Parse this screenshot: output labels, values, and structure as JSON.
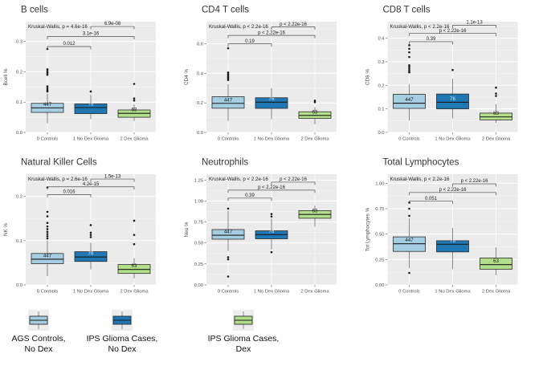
{
  "figure": {
    "background": "#ffffff"
  },
  "colors": {
    "panel_bg": "#ebebeb",
    "grid_major": "#ffffff",
    "box_border": "#2b2b2b",
    "whisker": "#8a8a8a",
    "median": "#1a1a1a",
    "outlier": "#1a1a1a",
    "bracket": "#4d4d4d",
    "title_text": "#333333",
    "axis_text": "#4d4d4d",
    "annotation_text": "#1a1a1a",
    "legend_key_bg": "#ededed",
    "groups": [
      "#a6cee3",
      "#1f78b4",
      "#b2df8a"
    ],
    "n_label_colors": [
      "#1a1a1a",
      "#dbe9f5",
      "#1a1a1a"
    ]
  },
  "x_categories": [
    "0 Controls",
    "1 No Dex Glioma",
    "2 Dex Glioma"
  ],
  "chart_data": [
    {
      "type": "boxplot",
      "title": "B cells",
      "ylabel": "Bcell %",
      "kruskal": "Kruskal-Wallis, p = 4.6e-16",
      "ylim": [
        0,
        0.365
      ],
      "yticks": [
        0,
        0.1,
        0.2,
        0.3
      ],
      "ytick_labels": [
        "0.0",
        "0.1",
        "0.2",
        "0.3"
      ],
      "categories": [
        "0 Controls",
        "1 No Dex Glioma",
        "2 Dex Glioma"
      ],
      "boxes": [
        {
          "n": 447,
          "whislo": 0.03,
          "q1": 0.066,
          "med": 0.081,
          "q3": 0.096,
          "whishi": 0.128,
          "outliers": [
            0.135,
            0.14,
            0.146,
            0.152,
            0.19,
            0.196,
            0.202,
            0.208,
            0.275
          ]
        },
        {
          "n": 76,
          "whislo": 0.044,
          "q1": 0.062,
          "med": 0.082,
          "q3": 0.094,
          "whishi": 0.124,
          "outliers": [
            0.135
          ]
        },
        {
          "n": 63,
          "whislo": 0.038,
          "q1": 0.05,
          "med": 0.063,
          "q3": 0.074,
          "whishi": 0.092,
          "outliers": [
            0.105,
            0.112,
            0.16
          ]
        }
      ],
      "comparisons": [
        {
          "groups": [
            0,
            1
          ],
          "label": "0.012",
          "y": 0.283
        },
        {
          "groups": [
            0,
            2
          ],
          "label": "3.1e-16",
          "y": 0.316
        },
        {
          "groups": [
            1,
            2
          ],
          "label": "6.9e-08",
          "y": 0.349
        }
      ]
    },
    {
      "type": "boxplot",
      "title": "CD4 T cells",
      "ylabel": "CD4 %",
      "kruskal": "Kruskal-Wallis, p < 2.2e-16",
      "ylim": [
        0,
        0.75
      ],
      "yticks": [
        0,
        0.2,
        0.4,
        0.6
      ],
      "ytick_labels": [
        "0.0",
        "0.2",
        "0.4",
        "0.6"
      ],
      "categories": [
        "0 Controls",
        "1 No Dex Glioma",
        "2 Dex Glioma"
      ],
      "boxes": [
        {
          "n": 447,
          "whislo": 0.078,
          "q1": 0.164,
          "med": 0.197,
          "q3": 0.242,
          "whishi": 0.327,
          "outliers": [
            0.355,
            0.365,
            0.375,
            0.385,
            0.395,
            0.405,
            0.57
          ]
        },
        {
          "n": 76,
          "whislo": 0.09,
          "q1": 0.163,
          "med": 0.205,
          "q3": 0.235,
          "whishi": 0.3,
          "outliers": []
        },
        {
          "n": 63,
          "whislo": 0.055,
          "q1": 0.095,
          "med": 0.115,
          "q3": 0.14,
          "whishi": 0.172,
          "outliers": [
            0.205,
            0.215
          ]
        }
      ],
      "comparisons": [
        {
          "groups": [
            0,
            1
          ],
          "label": "0.19",
          "y": 0.6
        },
        {
          "groups": [
            0,
            2
          ],
          "label": "p < 2.22e-16",
          "y": 0.657
        },
        {
          "groups": [
            1,
            2
          ],
          "label": "p < 2.22e-16",
          "y": 0.714
        }
      ]
    },
    {
      "type": "boxplot",
      "title": "CD8 T cells",
      "ylabel": "CD8 %",
      "kruskal": "Kruskal-Wallis, p < 2.2e-16",
      "ylim": [
        0,
        0.47
      ],
      "yticks": [
        0,
        0.1,
        0.2,
        0.3,
        0.4
      ],
      "ytick_labels": [
        "0.0",
        "0.1",
        "0.2",
        "0.3",
        "0.4"
      ],
      "categories": [
        "0 Controls",
        "1 No Dex Glioma",
        "2 Dex Glioma"
      ],
      "boxes": [
        {
          "n": 447,
          "whislo": 0.05,
          "q1": 0.102,
          "med": 0.124,
          "q3": 0.162,
          "whishi": 0.205,
          "outliers": [
            0.255,
            0.262,
            0.27,
            0.278,
            0.285,
            0.32,
            0.34,
            0.355,
            0.37
          ]
        },
        {
          "n": 76,
          "whislo": 0.06,
          "q1": 0.1,
          "med": 0.128,
          "q3": 0.163,
          "whishi": 0.228,
          "outliers": [
            0.265
          ]
        },
        {
          "n": 63,
          "whislo": 0.04,
          "q1": 0.053,
          "med": 0.066,
          "q3": 0.082,
          "whishi": 0.12,
          "outliers": [
            0.155,
            0.165,
            0.19
          ]
        }
      ],
      "comparisons": [
        {
          "groups": [
            0,
            1
          ],
          "label": "0.39",
          "y": 0.385
        },
        {
          "groups": [
            0,
            2
          ],
          "label": "p < 2.22e-16",
          "y": 0.42
        },
        {
          "groups": [
            1,
            2
          ],
          "label": "1.1e-13",
          "y": 0.455
        }
      ]
    },
    {
      "type": "boxplot",
      "title": "Natural Killer Cells",
      "ylabel": "NK %",
      "kruskal": "Kruskal-Wallis, p = 2.6e-16",
      "ylim": [
        0,
        0.25
      ],
      "yticks": [
        0,
        0.1,
        0.2
      ],
      "ytick_labels": [
        "0.0",
        "0.1",
        "0.2"
      ],
      "categories": [
        "0 Controls",
        "1 No Dex Glioma",
        "2 Dex Glioma"
      ],
      "boxes": [
        {
          "n": 447,
          "whislo": 0.02,
          "q1": 0.048,
          "med": 0.058,
          "q3": 0.071,
          "whishi": 0.1,
          "outliers": [
            0.105,
            0.11,
            0.115,
            0.12,
            0.126,
            0.132,
            0.14,
            0.155,
            0.165,
            0.22
          ]
        },
        {
          "n": 76,
          "whislo": 0.035,
          "q1": 0.053,
          "med": 0.063,
          "q3": 0.075,
          "whishi": 0.095,
          "outliers": [
            0.108,
            0.113,
            0.118,
            0.135
          ]
        },
        {
          "n": 63,
          "whislo": 0.015,
          "q1": 0.026,
          "med": 0.035,
          "q3": 0.046,
          "whishi": 0.06,
          "outliers": [
            0.092,
            0.113,
            0.145
          ]
        }
      ],
      "comparisons": [
        {
          "groups": [
            0,
            1
          ],
          "label": "0.016",
          "y": 0.204
        },
        {
          "groups": [
            0,
            2
          ],
          "label": "4.2e-15",
          "y": 0.2215
        },
        {
          "groups": [
            1,
            2
          ],
          "label": "1.5e-13",
          "y": 0.239
        }
      ]
    },
    {
      "type": "boxplot",
      "title": "Neutrophils",
      "ylabel": "Neu %",
      "kruskal": "Kruskal-Wallis, p < 2.2e-16",
      "ylim": [
        0,
        1.32
      ],
      "yticks": [
        0,
        0.25,
        0.5,
        0.75,
        1,
        1.25
      ],
      "ytick_labels": [
        "0.00",
        "0.25",
        "0.50",
        "0.75",
        "1.00",
        "1.25"
      ],
      "categories": [
        "0 Controls",
        "1 No Dex Glioma",
        "2 Dex Glioma"
      ],
      "boxes": [
        {
          "n": 447,
          "whislo": 0.405,
          "q1": 0.545,
          "med": 0.592,
          "q3": 0.66,
          "whishi": 0.885,
          "outliers": [
            0.91,
            0.33,
            0.305,
            0.1
          ]
        },
        {
          "n": 76,
          "whislo": 0.425,
          "q1": 0.55,
          "med": 0.6,
          "q3": 0.645,
          "whishi": 0.79,
          "outliers": [
            0.815,
            0.845,
            0.39
          ]
        },
        {
          "n": 63,
          "whislo": 0.695,
          "q1": 0.795,
          "med": 0.84,
          "q3": 0.885,
          "whishi": 0.945,
          "outliers": []
        }
      ],
      "comparisons": [
        {
          "groups": [
            0,
            1
          ],
          "label": "0.39",
          "y": 1.035
        },
        {
          "groups": [
            0,
            2
          ],
          "label": "p < 2.22e-16",
          "y": 1.13
        },
        {
          "groups": [
            1,
            2
          ],
          "label": "p < 2.22e-16",
          "y": 1.225
        }
      ]
    },
    {
      "type": "boxplot",
      "title": "Total Lymphocytes",
      "ylabel": "Tot Lymphocytes %",
      "kruskal": "Kruskal-Wallis, p < 2.2e-16",
      "ylim": [
        0,
        1.09
      ],
      "yticks": [
        0,
        0.25,
        0.5,
        0.75,
        1
      ],
      "ytick_labels": [
        "0.00",
        "0.25",
        "0.50",
        "0.75",
        "1.00"
      ],
      "categories": [
        "0 Controls",
        "1 No Dex Glioma",
        "2 Dex Glioma"
      ],
      "boxes": [
        {
          "n": 447,
          "whislo": 0.165,
          "q1": 0.33,
          "med": 0.405,
          "q3": 0.473,
          "whishi": 0.655,
          "outliers": [
            0.68,
            0.75,
            0.81,
            0.118
          ]
        },
        {
          "n": 76,
          "whislo": 0.155,
          "q1": 0.325,
          "med": 0.4,
          "q3": 0.435,
          "whishi": 0.56,
          "outliers": []
        },
        {
          "n": 63,
          "whislo": 0.095,
          "q1": 0.155,
          "med": 0.2,
          "q3": 0.265,
          "whishi": 0.37,
          "outliers": []
        }
      ],
      "comparisons": [
        {
          "groups": [
            0,
            1
          ],
          "label": "0.051",
          "y": 0.825
        },
        {
          "groups": [
            0,
            2
          ],
          "label": "p < 2.22e-16",
          "y": 0.91
        },
        {
          "groups": [
            1,
            2
          ],
          "label": "p < 2.22e-16",
          "y": 0.995
        }
      ]
    }
  ],
  "legend": {
    "items": [
      {
        "lines": [
          "AGS Controls,",
          "No Dex"
        ],
        "color": "#a6cee3"
      },
      {
        "lines": [
          "IPS Glioma Cases,",
          "No Dex"
        ],
        "color": "#1f78b4"
      },
      {
        "lines": [
          "IPS Glioma Cases,",
          "Dex"
        ],
        "color": "#b2df8a"
      }
    ]
  }
}
